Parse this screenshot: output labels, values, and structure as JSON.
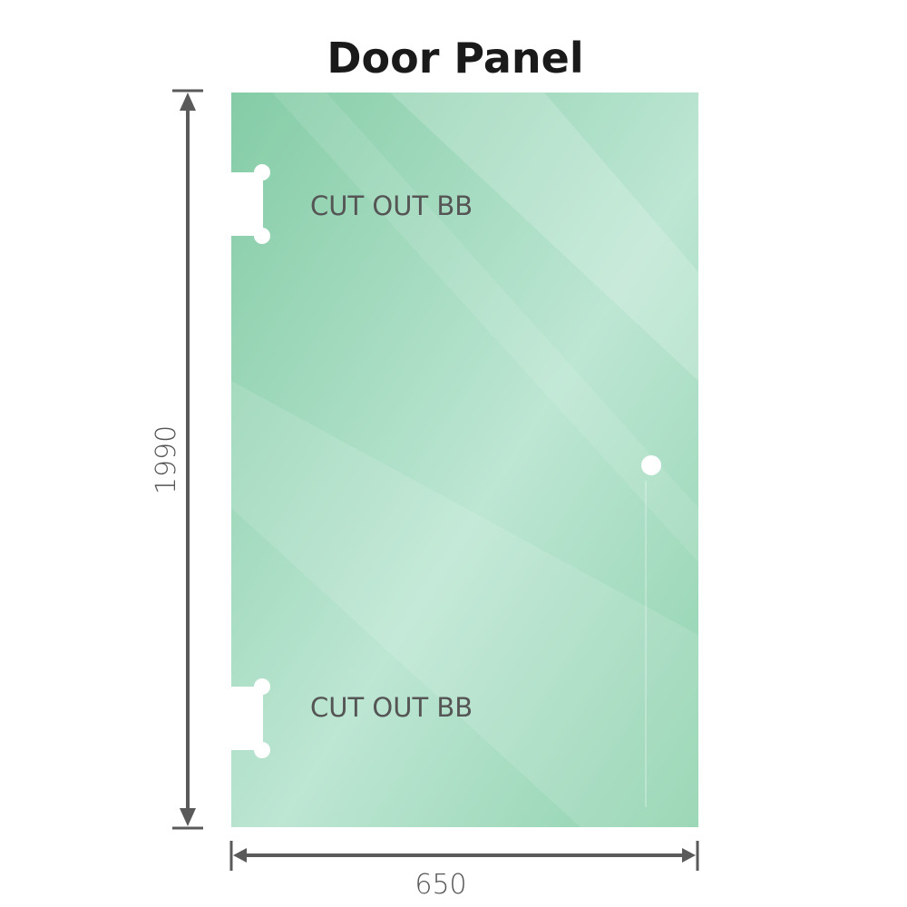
{
  "title": "Door Panel",
  "cutouts": [
    {
      "label": "CUT OUT BB"
    },
    {
      "label": "CUT OUT BB"
    }
  ],
  "dimensions": {
    "height": "1990",
    "width": "650"
  },
  "colors": {
    "glass": "#8fd0ad",
    "glass_light": "#bde6d2",
    "dimension_line": "#5a5a5a"
  }
}
